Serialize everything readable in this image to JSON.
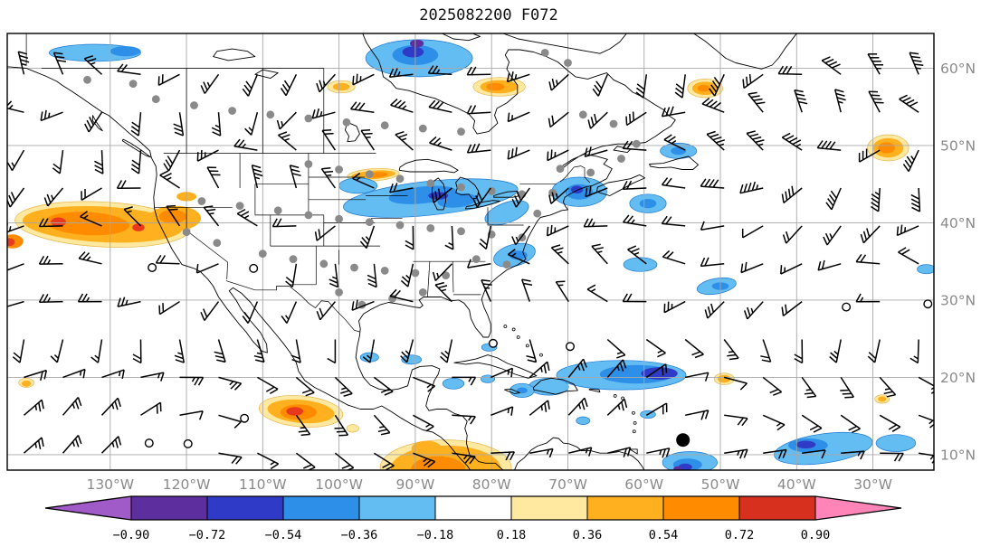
{
  "title": "2025082200 F072",
  "colors": {
    "lb": "#63BCF2",
    "mb": "#2E8FE8",
    "rb": "#2F3BC6",
    "pu": "#5C2E9E",
    "py": "#FFE9A0",
    "am": "#FFB01E",
    "or": "#FF8C00",
    "rd": "#E8391D",
    "under_arrow": "#A05BC8",
    "over_arrow": "#FF85B8",
    "grid_gray": "#A8A8A8",
    "axis_label_gray": "#8A8A8A",
    "station_gray": "#8A8A8A",
    "coast_black": "#000000"
  },
  "chart_data": {
    "type": "map",
    "subtype": "wind-barb-map-with-filled-anomaly-contours",
    "title": "2025082200 F072",
    "projection": "equirectangular",
    "extent": {
      "lon_west_deg_w": 143.5,
      "lon_east_deg_w": 22.0,
      "lat_south_deg_n": 8.0,
      "lat_north_deg_n": 64.5
    },
    "x_axis": {
      "tick_labels": [
        "130°W",
        "120°W",
        "110°W",
        "100°W",
        "90°W",
        "80°W",
        "70°W",
        "60°W",
        "50°W",
        "40°W",
        "30°W"
      ],
      "tick_lons_deg_w": [
        130,
        120,
        110,
        100,
        90,
        80,
        70,
        60,
        50,
        40,
        30
      ]
    },
    "y_axis": {
      "tick_labels": [
        "60°N",
        "50°N",
        "40°N",
        "30°N",
        "20°N",
        "10°N"
      ],
      "tick_lats_deg_n": [
        60,
        50,
        40,
        30,
        20,
        10
      ]
    },
    "colorbar": {
      "orientation": "horizontal",
      "boundaries": [
        -0.9,
        -0.72,
        -0.54,
        -0.36,
        -0.18,
        0.18,
        0.36,
        0.54,
        0.72,
        0.9
      ],
      "tick_labels": [
        "−0.90",
        "−0.72",
        "−0.54",
        "−0.36",
        "−0.18",
        "0.18",
        "0.36",
        "0.54",
        "0.72",
        "0.90"
      ],
      "segment_colors": [
        "#5C2E9E",
        "#2F3BC6",
        "#2E8FE8",
        "#63BCF2",
        "#FFFFFF",
        "#FFE9A0",
        "#FFB01E",
        "#FF8C00",
        "#D7301F"
      ],
      "under_color": "#A05BC8",
      "over_color": "#FF85B8"
    },
    "wind_barbs": {
      "grid_spacing_deg": 5,
      "note": "black wind barbs on a regular lat-lon grid; a few calm circles; flags only in far north Atlantic"
    },
    "stations_gray_dots": [
      [
        133,
        58.5
      ],
      [
        127,
        58
      ],
      [
        124,
        56
      ],
      [
        119,
        55.2
      ],
      [
        114,
        54.5
      ],
      [
        109,
        54
      ],
      [
        104,
        53.5
      ],
      [
        99,
        53
      ],
      [
        94,
        52.6
      ],
      [
        89,
        52.2
      ],
      [
        84,
        51.8
      ],
      [
        73,
        62
      ],
      [
        70,
        60.7
      ],
      [
        68,
        54
      ],
      [
        64,
        52.8
      ],
      [
        61,
        50.2
      ],
      [
        63,
        48.3
      ],
      [
        67,
        46.5
      ],
      [
        71,
        47
      ],
      [
        104,
        47.6
      ],
      [
        100,
        46.9
      ],
      [
        96,
        46.3
      ],
      [
        92,
        45.7
      ],
      [
        88,
        45.1
      ],
      [
        84,
        44.6
      ],
      [
        80,
        44.1
      ],
      [
        76,
        43.7
      ],
      [
        72,
        43.9
      ],
      [
        74,
        41.2
      ],
      [
        118,
        42.8
      ],
      [
        113,
        42.2
      ],
      [
        108,
        41.6
      ],
      [
        104,
        41
      ],
      [
        100,
        40.5
      ],
      [
        96,
        40.1
      ],
      [
        92,
        39.7
      ],
      [
        88,
        39.3
      ],
      [
        84,
        38.9
      ],
      [
        80,
        38.5
      ],
      [
        76,
        38.1
      ],
      [
        120,
        38.8
      ],
      [
        116,
        37.4
      ],
      [
        110,
        36
      ],
      [
        106,
        35.3
      ],
      [
        102,
        34.7
      ],
      [
        98,
        34.2
      ],
      [
        94,
        33.8
      ],
      [
        90,
        33.5
      ],
      [
        86,
        33.2
      ],
      [
        82,
        35.3
      ],
      [
        78,
        34.6
      ],
      [
        100,
        31
      ],
      [
        97,
        29.4
      ],
      [
        93,
        30.2
      ],
      [
        89,
        31
      ]
    ],
    "calm_circles": [
      [
        124.5,
        34.2
      ],
      [
        111.2,
        34.1
      ],
      [
        69.7,
        24.0
      ],
      [
        33.5,
        29.1
      ],
      [
        112.4,
        14.7
      ],
      [
        124.9,
        11.5
      ],
      [
        119.8,
        11.4
      ],
      [
        79.8,
        24.4
      ],
      [
        22.8,
        29.5
      ]
    ],
    "special_marker": {
      "lon_deg_w": 54.9,
      "lat_deg_n": 11.9,
      "type": "filled-black-circle"
    },
    "shaded_regions": [
      [
        132,
        62,
        6,
        1.1,
        0,
        "lb"
      ],
      [
        128,
        62.2,
        2,
        0.65,
        0,
        "mb"
      ],
      [
        89.5,
        61.3,
        7,
        2.4,
        0,
        "lb"
      ],
      [
        90,
        61.7,
        3,
        1.3,
        0,
        "mb"
      ],
      [
        90.3,
        62.1,
        1.4,
        0.7,
        0,
        "rb"
      ],
      [
        89.8,
        63.2,
        0.9,
        0.5,
        0,
        "pu"
      ],
      [
        99.7,
        57.6,
        1.8,
        0.8,
        0,
        "py"
      ],
      [
        99.7,
        57.6,
        1.1,
        0.5,
        0,
        "am"
      ],
      [
        79,
        57.6,
        3.4,
        1.2,
        0,
        "py"
      ],
      [
        79,
        57.6,
        2.5,
        0.85,
        0,
        "am"
      ],
      [
        79.5,
        57.6,
        1.2,
        0.5,
        0,
        "or"
      ],
      [
        52,
        57.4,
        2.3,
        1.2,
        0,
        "py"
      ],
      [
        52,
        57.4,
        1.7,
        0.85,
        0,
        "am"
      ],
      [
        52.2,
        57.4,
        0.8,
        0.45,
        0,
        "or"
      ],
      [
        28,
        49.7,
        2.7,
        1.7,
        0,
        "py"
      ],
      [
        28,
        49.7,
        2,
        1.25,
        0,
        "am"
      ],
      [
        28.2,
        49.7,
        1.1,
        0.7,
        0,
        "or"
      ],
      [
        95.5,
        46.2,
        3.4,
        0.8,
        -4,
        "py"
      ],
      [
        95.5,
        46.2,
        2.9,
        0.55,
        -4,
        "am"
      ],
      [
        95,
        46.2,
        1.4,
        0.35,
        -4,
        "or"
      ],
      [
        83,
        44.4,
        2.4,
        0.7,
        -10,
        "am"
      ],
      [
        83.3,
        44.4,
        1.1,
        0.4,
        -10,
        "or"
      ],
      [
        88,
        43.2,
        11.5,
        2.2,
        -6,
        "lb"
      ],
      [
        89,
        43.6,
        4.5,
        1.1,
        -6,
        "mb"
      ],
      [
        84.5,
        42.9,
        2.6,
        0.9,
        -6,
        "mb"
      ],
      [
        87,
        43.5,
        1.3,
        0.5,
        0,
        "rb"
      ],
      [
        97.5,
        44.8,
        2.5,
        1,
        0,
        "lb"
      ],
      [
        78,
        41.3,
        3,
        1.3,
        -20,
        "lb"
      ],
      [
        77,
        35.8,
        2.8,
        1.4,
        -15,
        "lb"
      ],
      [
        76.5,
        35.8,
        1.2,
        0.6,
        0,
        "mb"
      ],
      [
        68.5,
        44,
        3.6,
        1.9,
        0,
        "lb"
      ],
      [
        68.5,
        44,
        1.8,
        1,
        0,
        "mb"
      ],
      [
        68.8,
        44.3,
        0.8,
        0.5,
        0,
        "rb"
      ],
      [
        59.5,
        42.5,
        2.4,
        1.2,
        0,
        "lb"
      ],
      [
        59.5,
        42.5,
        1.1,
        0.6,
        0,
        "mb"
      ],
      [
        55.5,
        49.3,
        2.4,
        1,
        0,
        "lb"
      ],
      [
        55.5,
        49.3,
        1,
        0.5,
        0,
        "mb"
      ],
      [
        60.5,
        34.6,
        2.2,
        0.9,
        0,
        "lb"
      ],
      [
        50.5,
        31.8,
        2.6,
        1,
        -10,
        "lb"
      ],
      [
        50,
        31.8,
        1.1,
        0.5,
        0,
        "mb"
      ],
      [
        23,
        34,
        1.2,
        0.6,
        0,
        "lb"
      ],
      [
        63,
        20.3,
        8.5,
        1.9,
        0,
        "lb"
      ],
      [
        61,
        20.4,
        4.8,
        1.2,
        0,
        "mb"
      ],
      [
        58,
        20.5,
        2.4,
        0.8,
        0,
        "rb"
      ],
      [
        72.5,
        18.8,
        2.6,
        1.1,
        0,
        "lb"
      ],
      [
        76,
        18.3,
        1.6,
        0.9,
        0,
        "lb"
      ],
      [
        76,
        18.3,
        0.7,
        0.4,
        0,
        "mb"
      ],
      [
        49.5,
        19.8,
        1.3,
        0.75,
        0,
        "py"
      ],
      [
        49.5,
        19.8,
        0.85,
        0.5,
        0,
        "am"
      ],
      [
        85,
        19.2,
        1.4,
        0.7,
        0,
        "lb"
      ],
      [
        80.5,
        19.8,
        0.9,
        0.5,
        0,
        "lb"
      ],
      [
        96,
        22.6,
        1.2,
        0.6,
        0,
        "lb"
      ],
      [
        90.5,
        22.3,
        1.3,
        0.6,
        0,
        "lb"
      ],
      [
        80.3,
        23.9,
        1,
        0.5,
        0,
        "lb"
      ],
      [
        36.5,
        10.8,
        6.5,
        1.9,
        -8,
        "lb"
      ],
      [
        27,
        11.5,
        2.6,
        1.1,
        0,
        "lb"
      ],
      [
        38.5,
        11.2,
        2.6,
        0.9,
        0,
        "mb"
      ],
      [
        38.8,
        11.3,
        1.3,
        0.5,
        0,
        "rb"
      ],
      [
        54,
        9,
        3.6,
        1.4,
        0,
        "lb"
      ],
      [
        54.3,
        8.7,
        1.9,
        0.8,
        0,
        "mb"
      ],
      [
        54.6,
        8.4,
        0.9,
        0.45,
        0,
        "rb"
      ],
      [
        55.6,
        8.2,
        0.55,
        0.3,
        0,
        "pu"
      ],
      [
        59.5,
        15.2,
        1,
        0.5,
        0,
        "lb"
      ],
      [
        68,
        14.4,
        0.9,
        0.5,
        0,
        "lb"
      ],
      [
        28.8,
        17.2,
        0.95,
        0.55,
        0,
        "py"
      ],
      [
        28.8,
        17.2,
        0.55,
        0.35,
        0,
        "am"
      ],
      [
        131,
        39.8,
        11.5,
        2.9,
        3,
        "py"
      ],
      [
        131,
        39.8,
        10.5,
        2.3,
        3,
        "am"
      ],
      [
        133,
        39.9,
        5.5,
        1.5,
        3,
        "or"
      ],
      [
        121.5,
        40.6,
        3.4,
        1.6,
        0,
        "am"
      ],
      [
        121.8,
        40.8,
        1.8,
        0.9,
        0,
        "or"
      ],
      [
        136.8,
        40.1,
        1,
        0.6,
        0,
        "rd"
      ],
      [
        126.3,
        39.4,
        0.8,
        0.5,
        0,
        "rd"
      ],
      [
        142.8,
        37.6,
        1.4,
        0.9,
        0,
        "or"
      ],
      [
        143.2,
        37.5,
        0.7,
        0.5,
        0,
        "rd"
      ],
      [
        120,
        43.4,
        1.3,
        0.6,
        0,
        "am"
      ],
      [
        141,
        19.3,
        1,
        0.6,
        0,
        "py"
      ],
      [
        141,
        19.2,
        0.6,
        0.4,
        0,
        "am"
      ],
      [
        105,
        15.6,
        5.5,
        2,
        5,
        "py"
      ],
      [
        105,
        15.6,
        4.4,
        1.5,
        5,
        "am"
      ],
      [
        105.3,
        15.5,
        2.4,
        1,
        0,
        "or"
      ],
      [
        105.8,
        15.6,
        1.1,
        0.55,
        0,
        "rd"
      ],
      [
        98.2,
        13.4,
        0.8,
        0.5,
        0,
        "py"
      ],
      [
        86,
        8.3,
        8.6,
        3.6,
        0,
        "py"
      ],
      [
        86,
        8.2,
        7.2,
        3,
        0,
        "am"
      ],
      [
        87,
        8,
        3.6,
        1.8,
        0,
        "or"
      ],
      [
        88.5,
        10.8,
        2,
        1,
        0,
        "am"
      ]
    ]
  }
}
